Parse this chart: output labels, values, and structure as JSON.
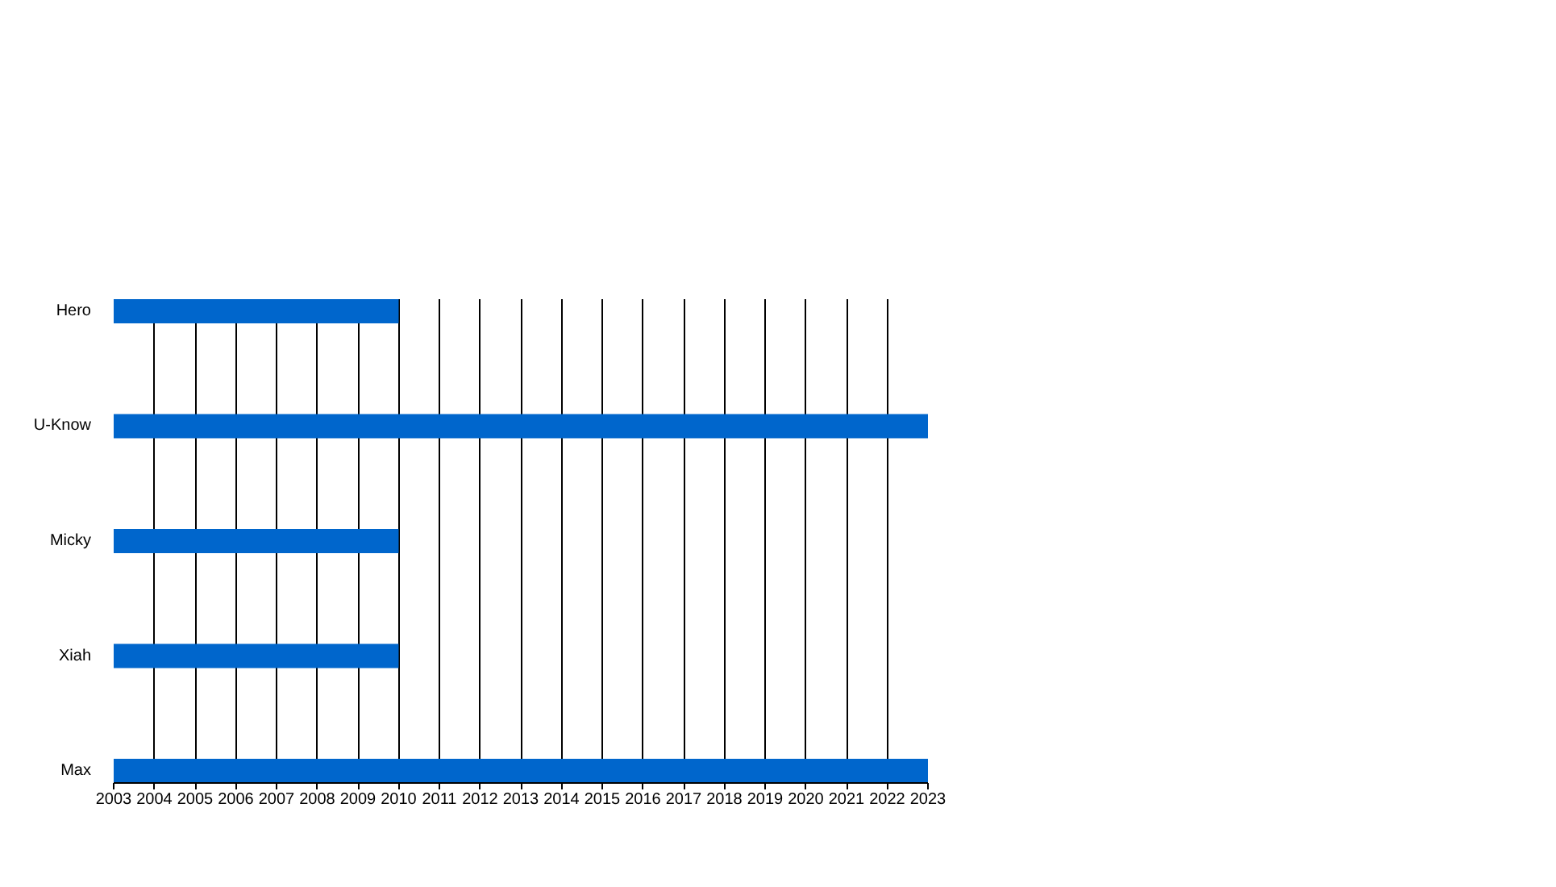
{
  "chart_data": {
    "type": "bar",
    "orientation": "horizontal",
    "categories": [
      "Hero",
      "U-Know",
      "Micky",
      "Xiah",
      "Max"
    ],
    "base": [
      2003,
      2003,
      2003,
      2003,
      2003
    ],
    "values": [
      7,
      20,
      7,
      7,
      20
    ],
    "color": "#0066cc",
    "xlim": [
      2003,
      2023
    ],
    "xticks": [
      2003,
      2004,
      2005,
      2006,
      2007,
      2008,
      2009,
      2010,
      2011,
      2012,
      2013,
      2014,
      2015,
      2016,
      2017,
      2018,
      2019,
      2020,
      2021,
      2022,
      2023
    ],
    "grid": "x"
  }
}
